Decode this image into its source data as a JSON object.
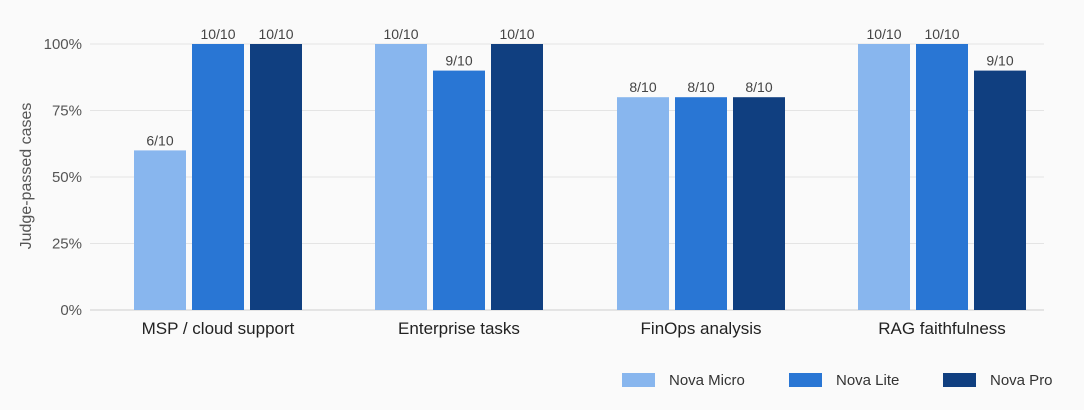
{
  "chart_data": {
    "type": "bar",
    "title": "",
    "xlabel": "",
    "ylabel": "Judge-passed cases",
    "ylim": [
      0,
      100
    ],
    "yticks": [
      0,
      25,
      50,
      75,
      100
    ],
    "ytick_labels": [
      "0%",
      "25%",
      "50%",
      "75%",
      "100%"
    ],
    "grid": true,
    "legend_position": "bottom-right",
    "categories": [
      "MSP / cloud support",
      "Enterprise tasks",
      "FinOps analysis",
      "RAG faithfulness"
    ],
    "series": [
      {
        "name": "Nova Micro",
        "color": "#88b6ee",
        "values": [
          60,
          100,
          80,
          100
        ],
        "labels": [
          "6/10",
          "10/10",
          "8/10",
          "10/10"
        ]
      },
      {
        "name": "Nova Lite",
        "color": "#2976d4",
        "values": [
          100,
          90,
          80,
          100
        ],
        "labels": [
          "10/10",
          "9/10",
          "8/10",
          "10/10"
        ]
      },
      {
        "name": "Nova Pro",
        "color": "#103f80",
        "values": [
          100,
          100,
          80,
          90
        ],
        "labels": [
          "10/10",
          "10/10",
          "8/10",
          "9/10"
        ]
      }
    ]
  }
}
